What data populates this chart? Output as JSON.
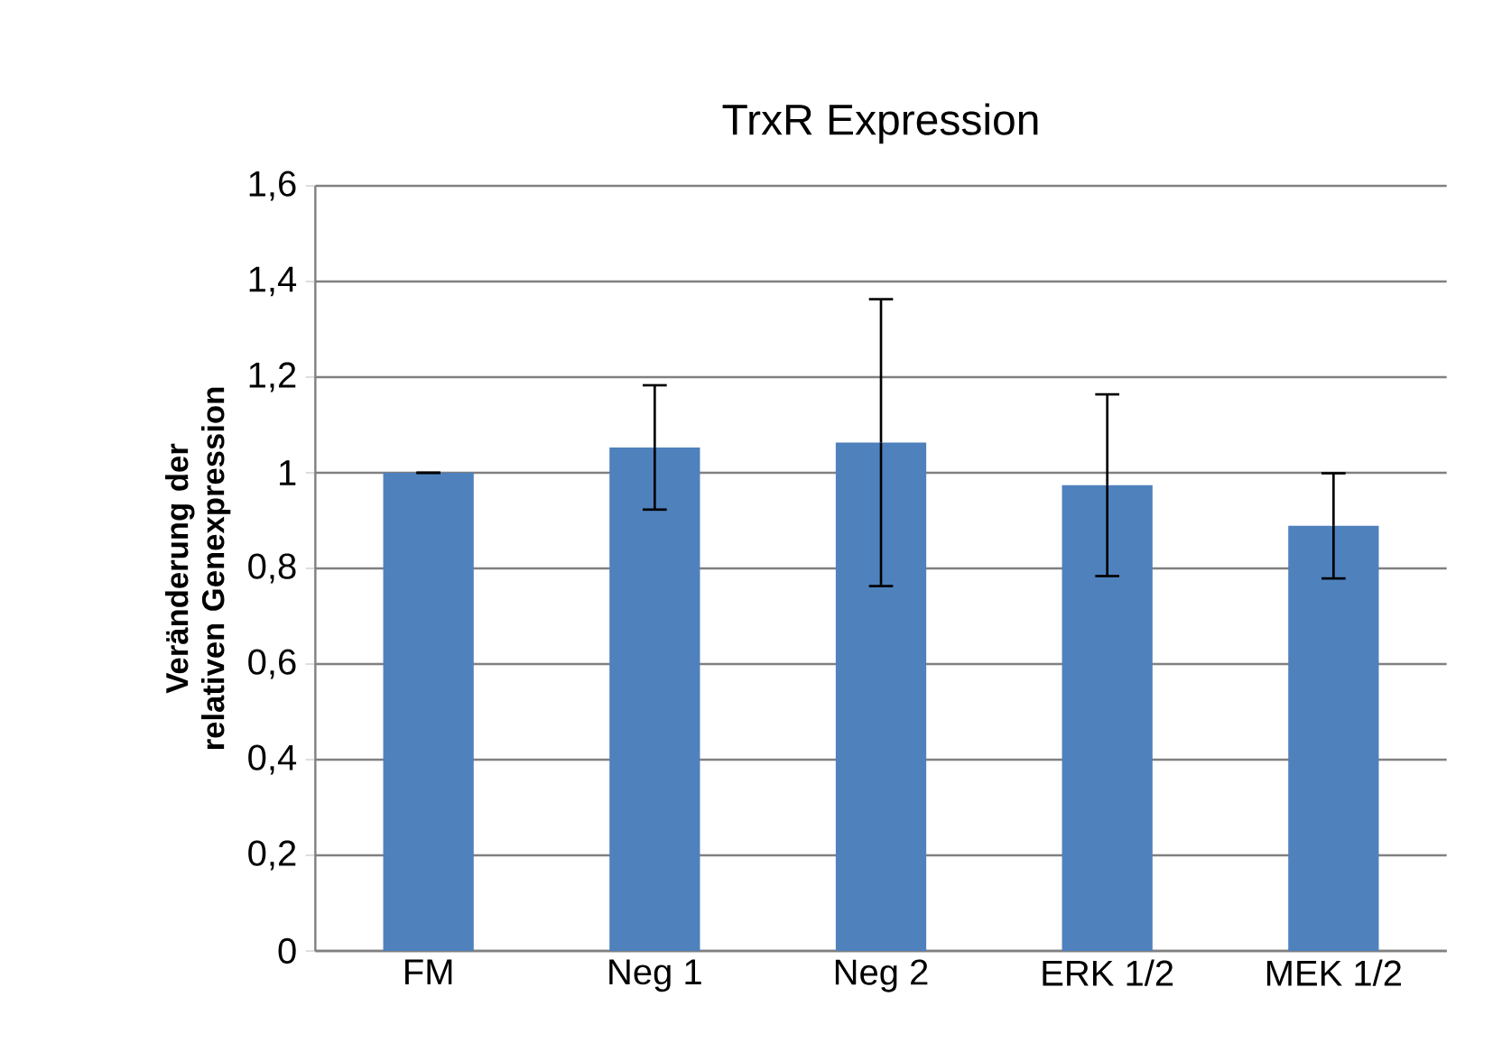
{
  "chart_data": {
    "type": "bar",
    "title": "TrxR Expression",
    "ylabel": "Veränderung der relativen Genexpression",
    "categories": [
      "FM",
      "Neg 1",
      "Neg 2",
      "ERK 1/2",
      "MEK 1/2"
    ],
    "values": [
      1.0,
      1.053,
      1.063,
      0.974,
      0.889
    ],
    "errors": [
      0,
      0.13,
      0.3,
      0.19,
      0.11
    ],
    "color": "#4f81bd",
    "ylim": [
      0,
      1.6
    ],
    "yticks": [
      0,
      {
        "value": 0.2,
        "label": "0,2"
      },
      {
        "value": 0.4,
        "label": "0,4"
      },
      {
        "value": 0.6,
        "label": "0,6"
      },
      {
        "value": 0.8,
        "label": "0,8"
      },
      1,
      {
        "value": 1.2,
        "label": "1,2"
      },
      {
        "value": 1.4,
        "label": "1,4"
      },
      {
        "value": 1.6,
        "label": "1,6"
      }
    ],
    "grid": "y"
  }
}
